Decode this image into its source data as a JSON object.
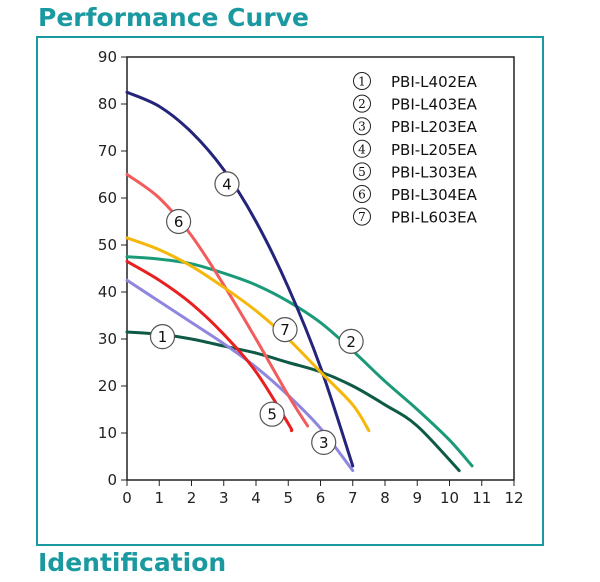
{
  "headings": {
    "top": "Performance Curve",
    "bottom": "Identification"
  },
  "colors": {
    "accent": "#1a9aa0"
  },
  "chart_data": {
    "type": "line",
    "title": "",
    "xlabel": "",
    "ylabel": "",
    "xlim": [
      0,
      12
    ],
    "ylim": [
      0,
      90
    ],
    "xticks": [
      "0",
      "1",
      "2",
      "3",
      "4",
      "5",
      "6",
      "7",
      "8",
      "9",
      "10",
      "11",
      "12"
    ],
    "yticks": [
      "0",
      "10",
      "20",
      "30",
      "40",
      "50",
      "60",
      "70",
      "80",
      "90"
    ],
    "grid": false,
    "legend_position": "top-right",
    "series": [
      {
        "name": "PBI-L402EA",
        "number": "1",
        "color": "#0e5a46",
        "label_at": [
          1.1,
          30.5
        ],
        "points": [
          [
            0,
            31.5
          ],
          [
            1,
            31
          ],
          [
            2,
            30
          ],
          [
            3,
            28.5
          ],
          [
            4,
            27
          ],
          [
            5,
            25
          ],
          [
            6,
            23
          ],
          [
            7,
            20
          ],
          [
            8,
            16
          ],
          [
            9,
            11.5
          ],
          [
            10.3,
            2
          ]
        ]
      },
      {
        "name": "PBI-L403EA",
        "number": "2",
        "color": "#1a9a78",
        "label_at": [
          6.95,
          29.5
        ],
        "points": [
          [
            0,
            47.5
          ],
          [
            1,
            47
          ],
          [
            2,
            46
          ],
          [
            3,
            44
          ],
          [
            4,
            41.5
          ],
          [
            5,
            38
          ],
          [
            6,
            33.5
          ],
          [
            7,
            27.5
          ],
          [
            8,
            21
          ],
          [
            9,
            15
          ],
          [
            10,
            8.5
          ],
          [
            10.7,
            3
          ]
        ]
      },
      {
        "name": "PBI-L203EA",
        "number": "3",
        "color": "#8f86e0",
        "label_at": [
          6.1,
          8
        ],
        "points": [
          [
            0,
            42.5
          ],
          [
            1,
            38
          ],
          [
            2,
            33.5
          ],
          [
            3,
            29
          ],
          [
            4,
            24
          ],
          [
            5,
            18
          ],
          [
            6,
            11
          ],
          [
            7,
            2
          ]
        ]
      },
      {
        "name": "PBI-L205EA",
        "number": "4",
        "color": "#23247a",
        "label_at": [
          3.1,
          63
        ],
        "points": [
          [
            0,
            82.5
          ],
          [
            1,
            79.5
          ],
          [
            2,
            74
          ],
          [
            3,
            66
          ],
          [
            4,
            55
          ],
          [
            5,
            41
          ],
          [
            6,
            24
          ],
          [
            7,
            3
          ]
        ]
      },
      {
        "name": "PBI-L303EA",
        "number": "5",
        "color": "#e82020",
        "label_at": [
          4.5,
          14
        ],
        "points": [
          [
            0,
            46.5
          ],
          [
            1,
            42.5
          ],
          [
            2,
            37.5
          ],
          [
            3,
            31
          ],
          [
            4,
            23
          ],
          [
            5,
            12
          ],
          [
            5.1,
            10.5
          ]
        ]
      },
      {
        "name": "PBI-L304EA",
        "number": "6",
        "color": "#f25c5c",
        "label_at": [
          1.6,
          55
        ],
        "points": [
          [
            0,
            65
          ],
          [
            1,
            60
          ],
          [
            2,
            52
          ],
          [
            3,
            41.5
          ],
          [
            4,
            30
          ],
          [
            5,
            18
          ],
          [
            5.6,
            11.5
          ]
        ]
      },
      {
        "name": "PBI-L603EA",
        "number": "7",
        "color": "#f5b70a",
        "label_at": [
          4.9,
          32
        ],
        "points": [
          [
            0,
            51.5
          ],
          [
            1,
            49
          ],
          [
            2,
            45.5
          ],
          [
            3,
            41
          ],
          [
            4,
            36
          ],
          [
            5,
            30
          ],
          [
            6,
            23
          ],
          [
            7,
            16
          ],
          [
            7.5,
            10.5
          ]
        ]
      }
    ]
  }
}
